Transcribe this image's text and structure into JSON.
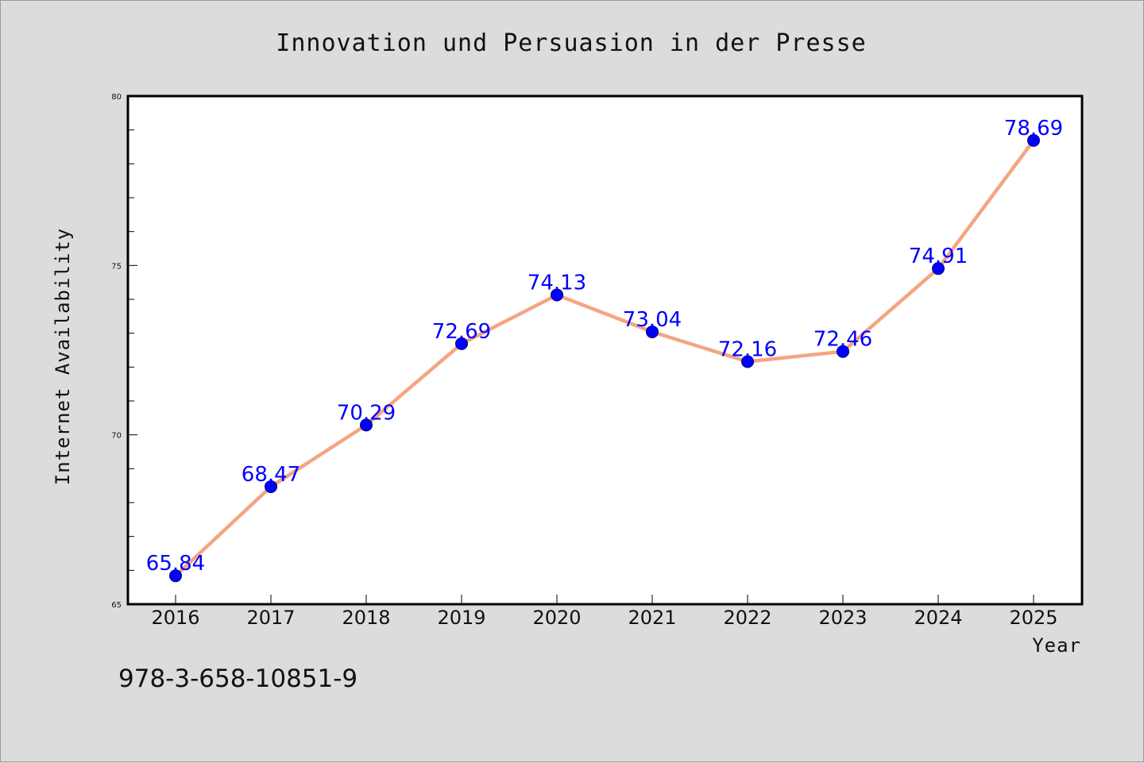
{
  "chart_data": {
    "type": "line",
    "title": "Innovation und Persuasion in der Presse",
    "xlabel": "Year",
    "ylabel": "Internet Availability",
    "categories": [
      "2016",
      "2017",
      "2018",
      "2019",
      "2020",
      "2021",
      "2022",
      "2023",
      "2024",
      "2025"
    ],
    "series": [
      {
        "values": [
          65.84,
          68.47,
          70.29,
          72.69,
          74.13,
          73.04,
          72.16,
          72.46,
          74.91,
          78.69
        ],
        "labels": [
          "65.84",
          "68.47",
          "70.29",
          "72.69",
          "74.13",
          "73.04",
          "72.16",
          "72.46",
          "74.91",
          "78.69"
        ],
        "line_color": "#f4a582",
        "marker_color": "#0000ff",
        "label_color": "#0000ff"
      }
    ],
    "ylim": [
      65,
      80
    ],
    "yticks": [
      65,
      70,
      75,
      80
    ],
    "ytick_labels": [
      "65",
      "70",
      "75",
      "80"
    ],
    "grid": false,
    "legend": "none"
  },
  "footer": {
    "isbn": "978-3-658-10851-9"
  },
  "colors": {
    "background": "#dcdcdc",
    "plot_background": "#ffffff",
    "axes": "#000000"
  }
}
